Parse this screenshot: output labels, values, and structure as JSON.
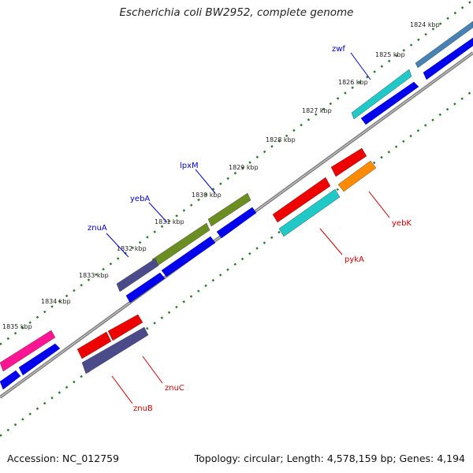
{
  "title": "Escherichia coli BW2952, complete genome",
  "footer": {
    "accession": "Accession: NC_012759",
    "summary": "Topology: circular; Length: 4,578,159 bp; Genes: 4,194"
  },
  "ticks": [
    "1824 kbp",
    "1825 kbp",
    "1826 kbp",
    "1827 kbp",
    "1828 kbp",
    "1829 kbp",
    "1830 kbp",
    "1831 kbp",
    "1832 kbp",
    "1833 kbp",
    "1834 kbp",
    "1835 kbp"
  ],
  "labels_top": [
    "zwf",
    "lpxM",
    "yebA",
    "znuA"
  ],
  "labels_bottom": [
    "yebK",
    "pykA",
    "znuC",
    "znuB"
  ],
  "colors": {
    "label_blue": "#0000cc",
    "label_red": "#cc0000",
    "tick_green": "#2a7a2a",
    "backbone": "#808080",
    "cds_blue": "#0000ee",
    "cyan": "#20c8c8",
    "olive": "#6b8e23",
    "slate": "#4b4b8c",
    "pink": "#ff1493",
    "red": "#ee0000",
    "orange": "#ff8c00",
    "steel": "#4682b4"
  }
}
